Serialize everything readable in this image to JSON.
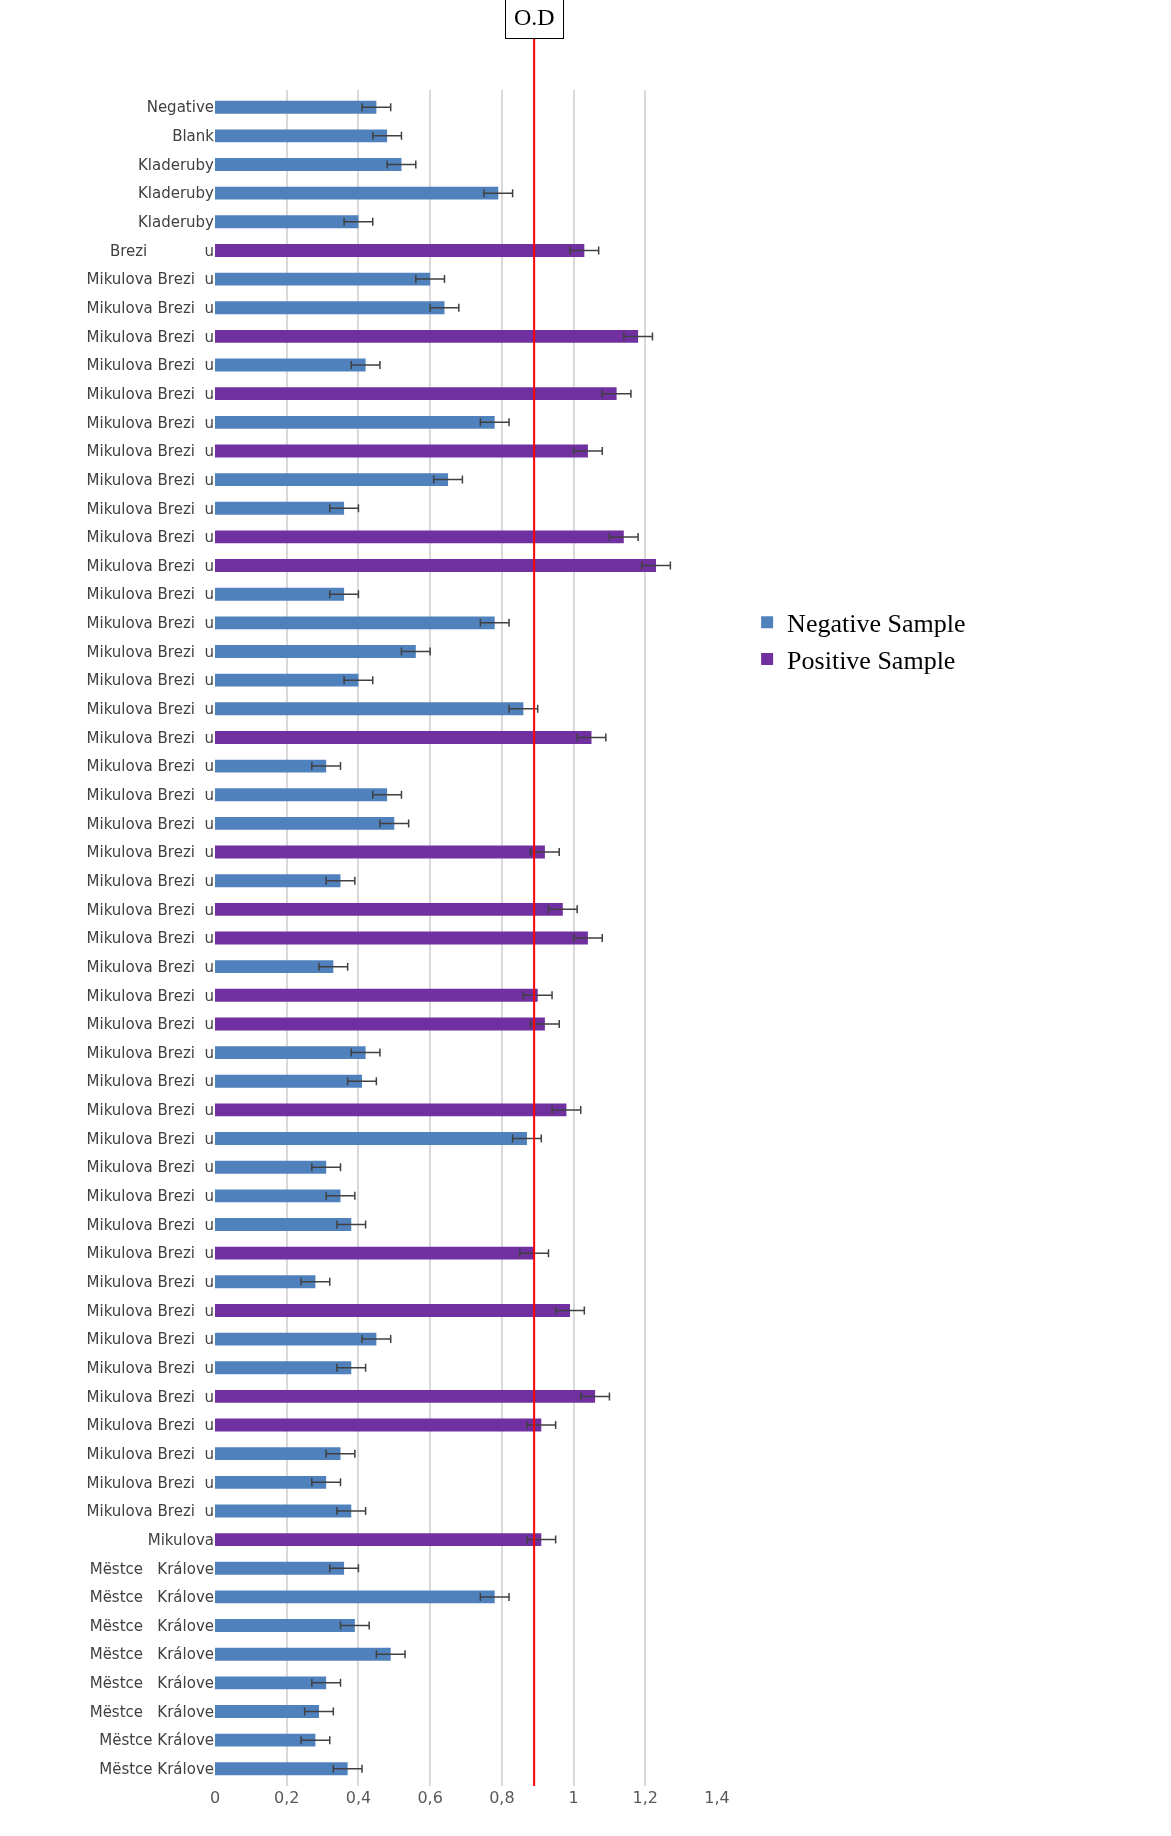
{
  "chart_data": {
    "type": "bar",
    "orientation": "horizontal",
    "categories": [
      "Negative",
      "Blank",
      "Kladeruby",
      "Kladeruby",
      "Kladeruby",
      "Brezi            u",
      "Mikulova Brezi  u",
      "Mikulova Brezi  u",
      "Mikulova Brezi  u",
      "Mikulova Brezi  u",
      "Mikulova Brezi  u",
      "Mikulova Brezi  u",
      "Mikulova Brezi  u",
      "Mikulova Brezi  u",
      "Mikulova Brezi  u",
      "Mikulova Brezi  u",
      "Mikulova Brezi  u",
      "Mikulova Brezi  u",
      "Mikulova Brezi  u",
      "Mikulova Brezi  u",
      "Mikulova Brezi  u",
      "Mikulova Brezi  u",
      "Mikulova Brezi  u",
      "Mikulova Brezi  u",
      "Mikulova Brezi  u",
      "Mikulova Brezi  u",
      "Mikulova Brezi  u",
      "Mikulova Brezi  u",
      "Mikulova Brezi  u",
      "Mikulova Brezi  u",
      "Mikulova Brezi  u",
      "Mikulova Brezi  u",
      "Mikulova Brezi  u",
      "Mikulova Brezi  u",
      "Mikulova Brezi  u",
      "Mikulova Brezi  u",
      "Mikulova Brezi  u",
      "Mikulova Brezi  u",
      "Mikulova Brezi  u",
      "Mikulova Brezi  u",
      "Mikulova Brezi  u",
      "Mikulova Brezi  u",
      "Mikulova Brezi  u",
      "Mikulova Brezi  u",
      "Mikulova Brezi  u",
      "Mikulova Brezi  u",
      "Mikulova Brezi  u",
      "Mikulova Brezi  u",
      "Mikulova Brezi  u",
      "Mikulova Brezi  u",
      "Mikulova",
      "Mëstce   Králove",
      "Mëstce   Králove",
      "Mëstce   Králove",
      "Mëstce   Králove",
      "Mëstce   Králove",
      "Mëstce   Králove",
      "Mëstce Králove",
      "Mëstce Králove"
    ],
    "series": [
      {
        "name": "Negative Sample",
        "color": "#4f81bd",
        "values": [
          0.45,
          0.48,
          0.52,
          0.79,
          0.4,
          null,
          0.6,
          0.64,
          null,
          0.42,
          null,
          0.78,
          null,
          0.65,
          0.36,
          null,
          null,
          0.36,
          0.78,
          0.56,
          0.4,
          0.86,
          null,
          0.31,
          0.48,
          0.5,
          null,
          0.35,
          null,
          null,
          0.33,
          null,
          null,
          0.42,
          0.41,
          null,
          0.87,
          0.31,
          0.35,
          0.38,
          null,
          0.28,
          null,
          0.45,
          0.38,
          null,
          null,
          0.35,
          0.31,
          0.38,
          null,
          0.36,
          0.78,
          0.39,
          0.49,
          0.31,
          0.29,
          0.28,
          0.37
        ],
        "errors": [
          0.04,
          0.04,
          0.04,
          0.04,
          0.04,
          null,
          0.04,
          0.04,
          null,
          0.04,
          null,
          0.04,
          null,
          0.04,
          0.04,
          null,
          null,
          0.04,
          0.04,
          0.04,
          0.04,
          0.04,
          null,
          0.04,
          0.04,
          0.04,
          null,
          0.04,
          null,
          null,
          0.04,
          null,
          null,
          0.04,
          0.04,
          null,
          0.04,
          0.04,
          0.04,
          0.04,
          null,
          0.04,
          null,
          0.04,
          0.04,
          null,
          null,
          0.04,
          0.04,
          0.04,
          null,
          0.04,
          0.04,
          0.04,
          0.04,
          0.04,
          0.04,
          0.04,
          0.04
        ]
      },
      {
        "name": "Positive Sample",
        "color": "#7030a0",
        "values": [
          null,
          null,
          null,
          null,
          null,
          1.03,
          null,
          null,
          1.18,
          null,
          1.12,
          null,
          1.04,
          null,
          null,
          1.14,
          1.23,
          null,
          null,
          null,
          null,
          null,
          1.05,
          null,
          null,
          null,
          0.92,
          null,
          0.97,
          1.04,
          null,
          0.9,
          0.92,
          null,
          null,
          0.98,
          null,
          null,
          null,
          null,
          0.89,
          null,
          0.99,
          null,
          null,
          1.06,
          0.91,
          null,
          null,
          null,
          0.91,
          null,
          null,
          null,
          null,
          null,
          null,
          null,
          null
        ],
        "errors": [
          null,
          null,
          null,
          null,
          null,
          0.04,
          null,
          null,
          0.04,
          null,
          0.04,
          null,
          0.04,
          null,
          null,
          0.04,
          0.04,
          null,
          null,
          null,
          null,
          null,
          0.04,
          null,
          null,
          null,
          0.04,
          null,
          0.04,
          0.04,
          null,
          0.04,
          0.04,
          null,
          null,
          0.04,
          null,
          null,
          null,
          null,
          0.04,
          null,
          0.04,
          null,
          null,
          0.04,
          0.04,
          null,
          null,
          null,
          0.04,
          null,
          null,
          null,
          null,
          null,
          null,
          null,
          null
        ]
      }
    ],
    "xlim": [
      0,
      1.4
    ],
    "xticks": [
      0,
      {
        "value": 0.2,
        "label": "0,2"
      },
      {
        "value": 0.4,
        "label": "0,4"
      },
      {
        "value": 0.6,
        "label": "0,6"
      },
      {
        "value": 0.8,
        "label": "0,8"
      },
      1,
      {
        "value": 1.2,
        "label": "1,2"
      },
      {
        "value": 1.4,
        "label": "1,4"
      }
    ],
    "ref_lines": [
      {
        "axis": "x",
        "value": 0.89,
        "label": "O.D",
        "color": "#ff0000"
      }
    ],
    "grid": "x",
    "legend": "right"
  }
}
